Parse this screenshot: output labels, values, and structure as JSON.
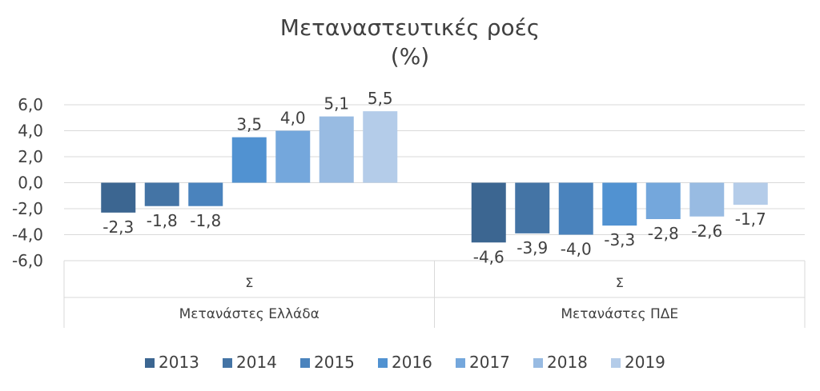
{
  "chart_data": {
    "type": "bar",
    "title": "Μεταναστευτικές ροές",
    "subtitle": "(%)",
    "xlabel": "",
    "ylabel": "",
    "ylim": [
      -6,
      6
    ],
    "yticks": [
      6,
      4,
      2,
      0,
      -2,
      -4,
      -6
    ],
    "ytick_labels": [
      "6,0",
      "4,0",
      "2,0",
      "0,0",
      "-2,0",
      "-4,0",
      "-6,0"
    ],
    "categories": [
      {
        "sub": "Σ",
        "label": "Μετανάστες Ελλάδα"
      },
      {
        "sub": "Σ",
        "label": "Μετανάστες ΠΔΕ"
      }
    ],
    "series": [
      {
        "name": "2013",
        "color": "#3c6691",
        "values": [
          -2.3,
          -4.6
        ],
        "labels": [
          "-2,3",
          "-4,6"
        ]
      },
      {
        "name": "2014",
        "color": "#4474a5",
        "values": [
          -1.8,
          -3.9
        ],
        "labels": [
          "-1,8",
          "-3,9"
        ]
      },
      {
        "name": "2015",
        "color": "#4a83bd",
        "values": [
          -1.8,
          -4.0
        ],
        "labels": [
          "-1,8",
          "-4,0"
        ]
      },
      {
        "name": "2016",
        "color": "#5192d1",
        "values": [
          3.5,
          -3.3
        ],
        "labels": [
          "3,5",
          "-3,3"
        ]
      },
      {
        "name": "2017",
        "color": "#74a7dc",
        "values": [
          4.0,
          -2.8
        ],
        "labels": [
          "4,0",
          "-2,8"
        ]
      },
      {
        "name": "2018",
        "color": "#98bbe2",
        "values": [
          5.1,
          -2.6
        ],
        "labels": [
          "5,1",
          "-2,6"
        ]
      },
      {
        "name": "2019",
        "color": "#b4cce9",
        "values": [
          5.5,
          -1.7
        ],
        "labels": [
          "5,5",
          "-1,7"
        ]
      }
    ],
    "grid": true,
    "legend": "bottom"
  }
}
